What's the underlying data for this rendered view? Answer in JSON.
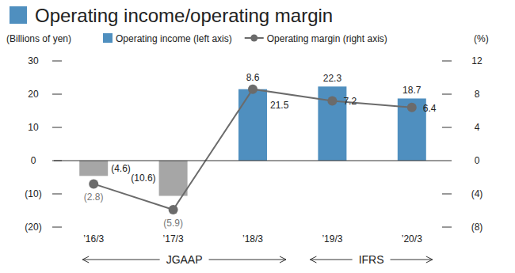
{
  "chart_data": {
    "type": "bar",
    "title": "Operating income/operating margin",
    "categories": [
      "’16/3",
      "’17/3",
      "’18/3",
      "’19/3",
      "’20/3"
    ],
    "series": [
      {
        "name": "Operating income (left axis)",
        "type": "bar",
        "colors": [
          "#a6a6a6",
          "#a6a6a6",
          "#4f8fbf",
          "#4f8fbf",
          "#4f8fbf"
        ],
        "values": [
          -4.6,
          -10.6,
          21.5,
          22.3,
          18.7
        ],
        "value_labels": [
          "(4.6)",
          "(10.6)",
          "21.5",
          "22.3",
          "18.7"
        ]
      },
      {
        "name": "Operating margin (right axis)",
        "type": "line",
        "axis": "y2",
        "color": "#6b6b6b",
        "marker": "circle",
        "values": [
          -2.8,
          -5.9,
          8.6,
          7.2,
          6.4
        ],
        "value_labels": [
          "(2.8)",
          "(5.9)",
          "8.6",
          "7.2",
          "6.4"
        ]
      }
    ],
    "y_label": "(Billions of yen)",
    "y2_label": "(%)",
    "ylim": [
      -20,
      30
    ],
    "yticks": [
      {
        "value": -20,
        "label": "(20)"
      },
      {
        "value": -10,
        "label": "(10)"
      },
      0,
      10,
      20,
      30
    ],
    "y2lim": [
      -8,
      12
    ],
    "y2ticks": [
      {
        "value": -8,
        "label": "(8)"
      },
      {
        "value": -4,
        "label": "(4)"
      },
      0,
      4,
      8,
      12
    ],
    "annotations": [
      "JGAAP",
      "IFRS"
    ],
    "legend": "top",
    "data_labels": true,
    "grid": false
  }
}
